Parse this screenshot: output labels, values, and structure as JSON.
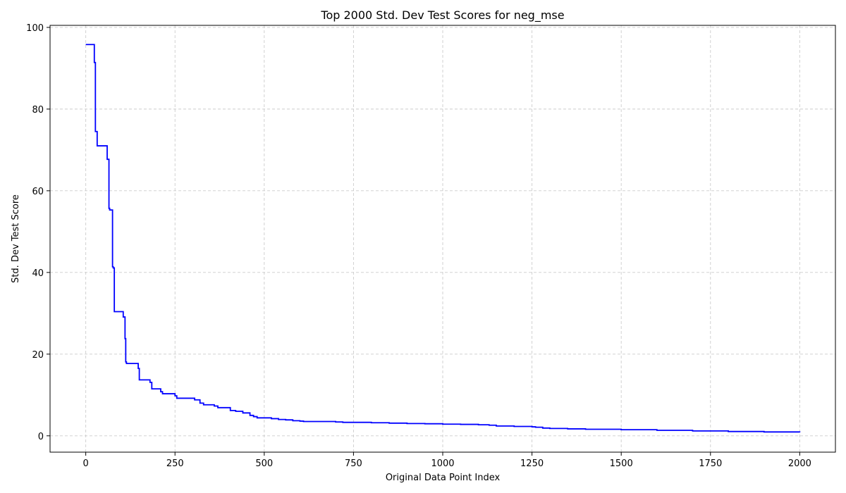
{
  "chart_data": {
    "type": "line",
    "title": "Top 2000 Std. Dev Test Scores for neg_mse",
    "xlabel": "Original Data Point Index",
    "ylabel": "Std. Dev Test Score",
    "xlim": [
      -100,
      2100
    ],
    "ylim": [
      -4,
      100.5
    ],
    "xticks": [
      0,
      250,
      500,
      750,
      1000,
      1250,
      1500,
      1750,
      2000
    ],
    "xtick_labels": [
      "0",
      "250",
      "500",
      "750",
      "1000",
      "1250",
      "1500",
      "1750",
      "2000"
    ],
    "yticks": [
      0,
      20,
      40,
      60,
      80,
      100
    ],
    "ytick_labels": [
      "0",
      "20",
      "40",
      "60",
      "80",
      "100"
    ],
    "grid": true,
    "series": [
      {
        "color": "#0000ff",
        "step": true,
        "x": [
          0,
          22,
          24,
          27,
          29,
          32,
          35,
          57,
          60,
          62,
          65,
          67,
          72,
          75,
          77,
          80,
          102,
          105,
          108,
          110,
          112,
          114,
          117,
          147,
          150,
          175,
          180,
          185,
          205,
          210,
          215,
          245,
          250,
          255,
          300,
          305,
          315,
          320,
          330,
          350,
          360,
          370,
          400,
          405,
          420,
          440,
          460,
          470,
          480,
          500,
          520,
          540,
          560,
          580,
          600,
          610,
          700,
          720,
          800,
          850,
          900,
          950,
          1000,
          1050,
          1100,
          1130,
          1150,
          1200,
          1250,
          1260,
          1280,
          1300,
          1350,
          1400,
          1500,
          1600,
          1700,
          1800,
          1900,
          2000
        ],
        "y": [
          95.8,
          95.8,
          91.4,
          74.5,
          74.5,
          71.0,
          71.0,
          71.0,
          67.7,
          67.7,
          55.7,
          55.3,
          55.3,
          41.4,
          41.1,
          30.4,
          30.4,
          29.1,
          29.1,
          23.8,
          18.1,
          17.7,
          17.7,
          16.5,
          13.7,
          13.7,
          13.1,
          11.5,
          11.5,
          10.8,
          10.3,
          10.3,
          9.8,
          9.2,
          9.2,
          8.8,
          8.8,
          8.0,
          7.6,
          7.6,
          7.3,
          6.9,
          6.9,
          6.2,
          6.0,
          5.6,
          5.0,
          4.7,
          4.4,
          4.4,
          4.2,
          4.0,
          3.9,
          3.7,
          3.6,
          3.5,
          3.4,
          3.3,
          3.2,
          3.1,
          3.0,
          2.95,
          2.85,
          2.8,
          2.7,
          2.6,
          2.4,
          2.3,
          2.2,
          2.1,
          1.9,
          1.8,
          1.7,
          1.6,
          1.5,
          1.35,
          1.2,
          1.05,
          0.95,
          0.85
        ]
      }
    ]
  }
}
